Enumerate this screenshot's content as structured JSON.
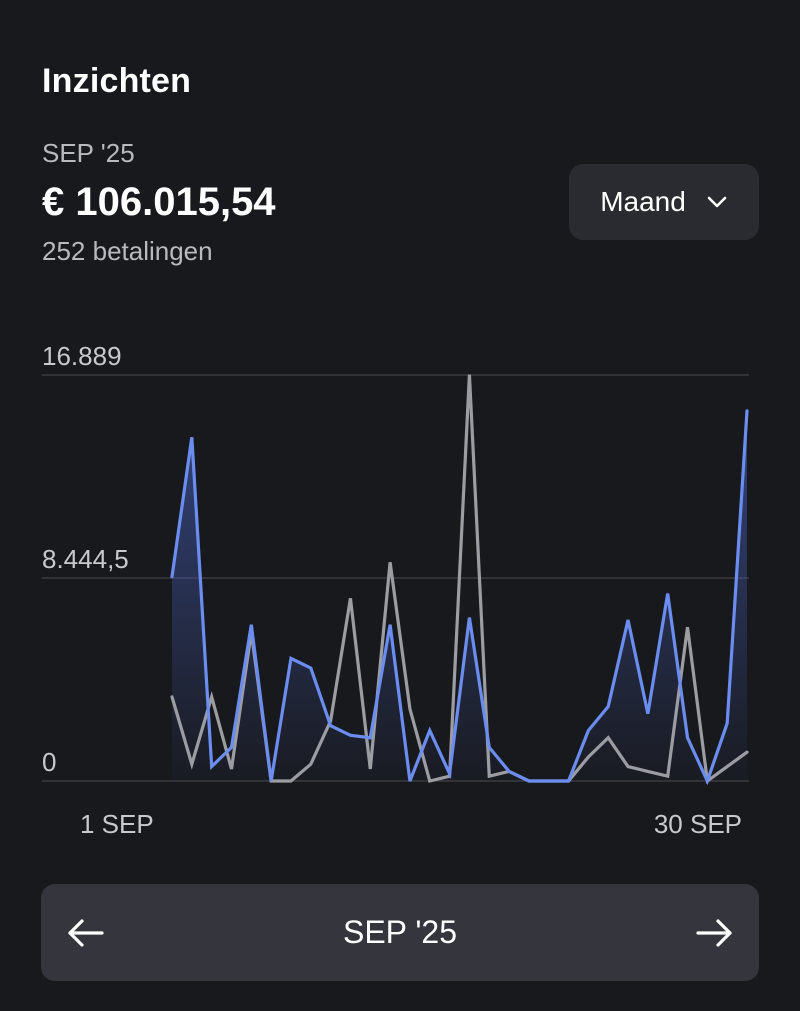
{
  "header": {
    "title": "Inzichten",
    "period": "SEP '25",
    "total_amount": "€ 106.015,54",
    "payments_count": "252 betalingen"
  },
  "range_selector": {
    "label": "Maand",
    "icon": "chevron-down-icon"
  },
  "chart_data": {
    "type": "line",
    "y_ticks": [
      "16.889",
      "8.444,5",
      "0"
    ],
    "ylim": [
      0,
      16889
    ],
    "x_labels": [
      "1 SEP",
      "30 SEP"
    ],
    "days": [
      1,
      2,
      3,
      4,
      5,
      6,
      7,
      8,
      9,
      10,
      11,
      12,
      13,
      14,
      15,
      16,
      17,
      18,
      19,
      20,
      21,
      22,
      23,
      24,
      25,
      26,
      27,
      28,
      29,
      30
    ],
    "grid": true,
    "colors": {
      "current": "#6b8df0",
      "previous": "#9c9ca3",
      "grid": "#3a3b42",
      "tick": "#c8c9ce"
    },
    "series": [
      {
        "key": "current",
        "values": [
          8500,
          14300,
          600,
          1400,
          6500,
          0,
          5100,
          4700,
          2300,
          1900,
          1800,
          6500,
          0,
          2100,
          300,
          6800,
          1400,
          400,
          0,
          0,
          0,
          2100,
          3100,
          6700,
          2800,
          7800,
          1800,
          0,
          2400,
          15400
        ]
      },
      {
        "key": "previous",
        "values": [
          3500,
          700,
          3500,
          500,
          6200,
          0,
          0,
          700,
          2500,
          7600,
          500,
          9100,
          3000,
          0,
          200,
          16900,
          200,
          400,
          0,
          0,
          0,
          1000,
          1800,
          600,
          400,
          200,
          6400,
          0,
          600,
          1200
        ]
      }
    ]
  },
  "navigator": {
    "label": "SEP '25",
    "prev_icon": "arrow-left-icon",
    "next_icon": "arrow-right-icon"
  }
}
